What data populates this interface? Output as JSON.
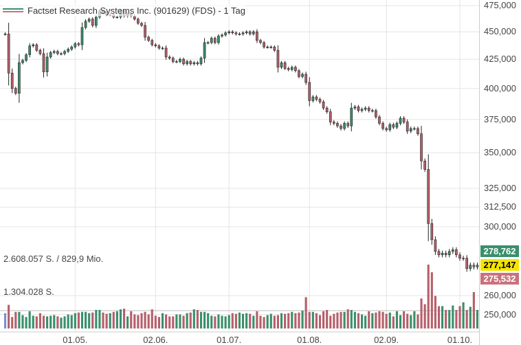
{
  "legend": {
    "title": "Factset Research Systems Inc. (901629) (FDS) - 1 Tag"
  },
  "volume_labels": {
    "high": "2.608.057 S. / 829,9 Mio.",
    "mid": "1.304.028 S."
  },
  "price_badges": {
    "upper": {
      "text": "278,762",
      "color": "#3a8f6d",
      "text_color": "#ffffff"
    },
    "current": {
      "text": "277,147",
      "color": "#f5e400",
      "text_color": "#000000"
    },
    "lower": {
      "text": "275,532",
      "color": "#c9727c",
      "text_color": "#ffffff"
    }
  },
  "colors": {
    "up": "#3a8f6d",
    "down": "#b5606b",
    "wick": "#222222",
    "grid": "#e4e4e4",
    "volume_first": "#7a8ed0"
  },
  "chart_data": {
    "type": "candlestick",
    "title": "Factset Research Systems Inc. (901629) (FDS) - 1 Tag",
    "y_scale": "log",
    "ylim": [
      247,
      478
    ],
    "y_ticks": [
      {
        "value": 475,
        "label": "475,000"
      },
      {
        "value": 450,
        "label": "450,000"
      },
      {
        "value": 425,
        "label": "425,000"
      },
      {
        "value": 400,
        "label": "400,000"
      },
      {
        "value": 375,
        "label": "375,000"
      },
      {
        "value": 350,
        "label": "350,000"
      },
      {
        "value": 325,
        "label": "325,000"
      },
      {
        "value": 312.5,
        "label": "312,500"
      },
      {
        "value": 300,
        "label": "300,000"
      },
      {
        "value": 260,
        "label": "260,000"
      },
      {
        "value": 250,
        "label": "250,000"
      }
    ],
    "x_ticks": [
      {
        "label": "01.05.",
        "index": 20
      },
      {
        "label": "02.06.",
        "index": 43
      },
      {
        "label": "01.07.",
        "index": 64
      },
      {
        "label": "01.08.",
        "index": 87
      },
      {
        "label": "02.09.",
        "index": 109
      },
      {
        "label": "01.10.",
        "index": 130
      }
    ],
    "close": [
      448,
      413,
      400,
      396,
      422,
      424,
      429,
      437,
      438,
      433,
      430,
      414,
      427,
      431,
      432,
      430,
      430,
      432,
      434,
      436,
      439,
      438,
      454,
      460,
      462,
      456,
      464,
      470,
      468,
      466,
      466,
      464,
      464,
      470,
      465,
      467,
      465,
      462,
      458,
      456,
      445,
      442,
      438,
      437,
      435,
      435,
      427,
      426,
      423,
      423,
      425,
      421,
      423,
      421,
      422,
      421,
      426,
      440,
      440,
      444,
      440,
      446,
      447,
      449,
      450,
      449,
      448,
      448,
      449,
      450,
      448,
      450,
      442,
      440,
      436,
      436,
      436,
      433,
      418,
      422,
      417,
      416,
      418,
      415,
      410,
      412,
      405,
      390,
      393,
      391,
      389,
      384,
      381,
      373,
      372,
      370,
      368,
      372,
      370,
      384,
      385,
      382,
      383,
      384,
      382,
      382,
      377,
      372,
      368,
      367,
      371,
      369,
      372,
      376,
      373,
      366,
      368,
      368,
      364,
      344,
      338,
      302,
      292,
      285,
      283,
      284,
      283,
      285,
      286,
      283,
      281,
      281,
      275,
      277,
      276,
      277
    ],
    "volume": [
      0.24,
      0.37,
      0.18,
      0.26,
      0.26,
      0.21,
      0.18,
      0.27,
      0.2,
      0.19,
      0.24,
      0.2,
      0.19,
      0.2,
      0.21,
      0.19,
      0.17,
      0.19,
      0.22,
      0.21,
      0.24,
      0.25,
      0.26,
      0.26,
      0.24,
      0.25,
      0.29,
      0.29,
      0.25,
      0.23,
      0.24,
      0.26,
      0.27,
      0.3,
      0.31,
      0.19,
      0.27,
      0.22,
      0.21,
      0.24,
      0.26,
      0.22,
      0.3,
      0.2,
      0.18,
      0.24,
      0.22,
      0.19,
      0.19,
      0.22,
      0.22,
      0.2,
      0.24,
      0.25,
      0.3,
      0.29,
      0.26,
      0.26,
      0.24,
      0.2,
      0.19,
      0.22,
      0.2,
      0.19,
      0.21,
      0.24,
      0.23,
      0.25,
      0.23,
      0.24,
      0.23,
      0.2,
      0.27,
      0.2,
      0.18,
      0.21,
      0.23,
      0.2,
      0.21,
      0.24,
      0.23,
      0.24,
      0.26,
      0.24,
      0.25,
      0.28,
      0.49,
      0.26,
      0.26,
      0.24,
      0.21,
      0.27,
      0.29,
      0.2,
      0.23,
      0.25,
      0.26,
      0.26,
      0.3,
      0.29,
      0.26,
      0.24,
      0.22,
      0.2,
      0.27,
      0.24,
      0.25,
      0.27,
      0.26,
      0.23,
      0.25,
      0.19,
      0.27,
      0.21,
      0.27,
      0.23,
      0.21,
      0.27,
      0.22,
      0.47,
      0.38,
      1.0,
      0.88,
      0.51,
      0.35,
      0.35,
      0.29,
      0.29,
      0.36,
      0.29,
      0.35,
      0.41,
      0.29,
      0.34,
      0.57,
      0.29
    ]
  }
}
